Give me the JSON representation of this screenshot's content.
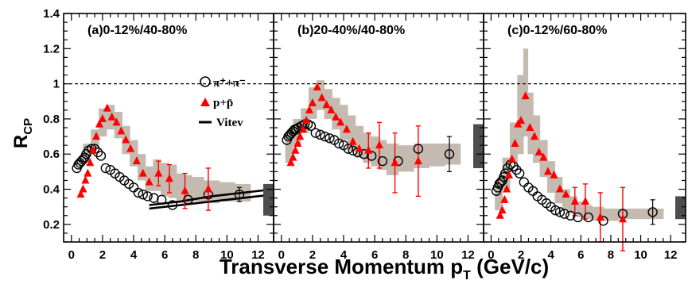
{
  "chart_data": {
    "type": "scatter",
    "ylabel_main": "R",
    "ylabel_sub": "CP",
    "xlabel_main": "Transverse Momentum p",
    "xlabel_sub": "T",
    "xlabel_unit": " (GeV/c)",
    "y_ticks": [
      "0.2",
      "0.4",
      "0.6",
      "0.8",
      "1",
      "1.2",
      "1.4"
    ],
    "x_ticks": [
      "0",
      "2",
      "4",
      "6",
      "8",
      "10",
      "12"
    ],
    "xlim": [
      -0.5,
      13
    ],
    "ylim": [
      0.1,
      1.4
    ],
    "reference_line_y": 1,
    "legend": {
      "pion_label": "π⁺+π⁻",
      "proton_label": "p+p̄",
      "model_label": "Vitev",
      "placement": "top-right of panel (a)"
    },
    "colors": {
      "pion": "#000000",
      "proton": "#ff0000",
      "band": "#c4bab0",
      "norm_box": "#4d4d4d"
    },
    "panels": [
      {
        "id": "a",
        "label": "(a)0-12%/40-80%",
        "norm_box": [
          0.25,
          0.43
        ],
        "pion": [
          [
            0.35,
            0.52
          ],
          [
            0.45,
            0.54
          ],
          [
            0.55,
            0.55
          ],
          [
            0.65,
            0.56
          ],
          [
            0.75,
            0.57
          ],
          [
            0.85,
            0.58
          ],
          [
            0.95,
            0.6
          ],
          [
            1.1,
            0.62
          ],
          [
            1.3,
            0.63
          ],
          [
            1.5,
            0.63
          ],
          [
            1.7,
            0.61
          ],
          [
            1.9,
            0.59
          ],
          [
            2.2,
            0.52
          ],
          [
            2.5,
            0.51
          ],
          [
            2.8,
            0.49
          ],
          [
            3.1,
            0.47
          ],
          [
            3.4,
            0.45
          ],
          [
            3.7,
            0.43
          ],
          [
            4.0,
            0.41
          ],
          [
            4.3,
            0.38
          ],
          [
            4.6,
            0.37
          ],
          [
            4.9,
            0.36
          ],
          [
            5.3,
            0.35
          ],
          [
            5.8,
            0.34
          ],
          [
            6.5,
            0.31
          ],
          [
            7.5,
            0.34
          ],
          [
            8.8,
            0.37
          ],
          [
            10.8,
            0.37
          ]
        ],
        "pion_err": [
          [
            10.8,
            0.04
          ]
        ],
        "proton": [
          [
            0.6,
            0.37
          ],
          [
            0.75,
            0.4
          ],
          [
            0.9,
            0.45
          ],
          [
            1.05,
            0.49
          ],
          [
            1.2,
            0.55
          ],
          [
            1.4,
            0.62
          ],
          [
            1.6,
            0.7
          ],
          [
            1.8,
            0.77
          ],
          [
            2.0,
            0.8
          ],
          [
            2.3,
            0.86
          ],
          [
            2.6,
            0.81
          ],
          [
            2.9,
            0.78
          ],
          [
            3.2,
            0.73
          ],
          [
            3.5,
            0.68
          ],
          [
            3.8,
            0.63
          ],
          [
            4.2,
            0.56
          ],
          [
            4.6,
            0.49
          ],
          [
            5.0,
            0.44
          ],
          [
            5.6,
            0.49
          ],
          [
            6.3,
            0.46
          ],
          [
            7.3,
            0.39
          ],
          [
            8.8,
            0.4
          ]
        ],
        "proton_err": [
          [
            5.6,
            0.07
          ],
          [
            6.3,
            0.08
          ],
          [
            7.3,
            0.1
          ],
          [
            8.8,
            0.12
          ]
        ],
        "band": [
          [
            1.0,
            0.58,
            0.66
          ],
          [
            1.5,
            0.63,
            0.74
          ],
          [
            2.0,
            0.7,
            0.86
          ],
          [
            2.5,
            0.74,
            0.88
          ],
          [
            3.0,
            0.69,
            0.84
          ],
          [
            3.5,
            0.6,
            0.76
          ],
          [
            4.0,
            0.53,
            0.68
          ],
          [
            4.5,
            0.45,
            0.6
          ],
          [
            5.0,
            0.39,
            0.53
          ],
          [
            5.5,
            0.39,
            0.57
          ],
          [
            6.0,
            0.36,
            0.55
          ],
          [
            6.5,
            0.35,
            0.54
          ],
          [
            7.0,
            0.32,
            0.49
          ],
          [
            7.5,
            0.32,
            0.48
          ],
          [
            8.0,
            0.33,
            0.47
          ],
          [
            9.0,
            0.32,
            0.45
          ],
          [
            10.0,
            0.33,
            0.44
          ],
          [
            11.0,
            0.33,
            0.43
          ]
        ],
        "vitev": [
          [
            [
              5.0,
              0.31
            ],
            [
              7.0,
              0.33
            ],
            [
              9.0,
              0.36
            ],
            [
              11.0,
              0.38
            ],
            [
              13.0,
              0.4
            ]
          ],
          [
            [
              5.0,
              0.29
            ],
            [
              7.0,
              0.31
            ],
            [
              9.0,
              0.33
            ],
            [
              11.0,
              0.35
            ],
            [
              13.0,
              0.37
            ]
          ]
        ]
      },
      {
        "id": "b",
        "label": "(b)20-40%/40-80%",
        "norm_box": [
          0.52,
          0.77
        ],
        "pion": [
          [
            0.35,
            0.68
          ],
          [
            0.45,
            0.7
          ],
          [
            0.55,
            0.71
          ],
          [
            0.65,
            0.72
          ],
          [
            0.75,
            0.73
          ],
          [
            0.85,
            0.74
          ],
          [
            0.95,
            0.74
          ],
          [
            1.1,
            0.75
          ],
          [
            1.3,
            0.76
          ],
          [
            1.5,
            0.77
          ],
          [
            1.7,
            0.77
          ],
          [
            1.9,
            0.76
          ],
          [
            2.2,
            0.72
          ],
          [
            2.5,
            0.71
          ],
          [
            2.8,
            0.7
          ],
          [
            3.1,
            0.69
          ],
          [
            3.4,
            0.68
          ],
          [
            3.7,
            0.66
          ],
          [
            4.0,
            0.65
          ],
          [
            4.3,
            0.63
          ],
          [
            4.6,
            0.62
          ],
          [
            4.9,
            0.61
          ],
          [
            5.3,
            0.6
          ],
          [
            5.8,
            0.59
          ],
          [
            6.5,
            0.56
          ],
          [
            7.5,
            0.56
          ],
          [
            8.8,
            0.63
          ],
          [
            10.8,
            0.6
          ]
        ],
        "pion_err": [
          [
            10.8,
            0.1
          ]
        ],
        "proton": [
          [
            0.6,
            0.55
          ],
          [
            0.75,
            0.58
          ],
          [
            0.9,
            0.62
          ],
          [
            1.05,
            0.66
          ],
          [
            1.2,
            0.7
          ],
          [
            1.4,
            0.74
          ],
          [
            1.6,
            0.79
          ],
          [
            1.8,
            0.85
          ],
          [
            2.0,
            0.89
          ],
          [
            2.3,
            0.98
          ],
          [
            2.6,
            0.92
          ],
          [
            2.9,
            0.88
          ],
          [
            3.2,
            0.85
          ],
          [
            3.5,
            0.81
          ],
          [
            3.8,
            0.78
          ],
          [
            4.2,
            0.74
          ],
          [
            4.6,
            0.67
          ],
          [
            5.0,
            0.63
          ],
          [
            5.6,
            0.62
          ],
          [
            6.3,
            0.65
          ],
          [
            7.3,
            0.55
          ],
          [
            8.8,
            0.56
          ]
        ],
        "proton_err": [
          [
            5.6,
            0.1
          ],
          [
            6.3,
            0.13
          ],
          [
            7.3,
            0.17
          ],
          [
            8.8,
            0.2
          ]
        ],
        "band": [
          [
            0.5,
            0.55,
            0.72
          ],
          [
            1.0,
            0.65,
            0.8
          ],
          [
            1.5,
            0.72,
            0.86
          ],
          [
            2.0,
            0.8,
            0.98
          ],
          [
            2.5,
            0.85,
            1.02
          ],
          [
            3.0,
            0.8,
            0.97
          ],
          [
            3.5,
            0.74,
            0.92
          ],
          [
            4.0,
            0.68,
            0.88
          ],
          [
            4.5,
            0.62,
            0.82
          ],
          [
            5.0,
            0.58,
            0.76
          ],
          [
            5.5,
            0.55,
            0.72
          ],
          [
            6.0,
            0.53,
            0.7
          ],
          [
            6.5,
            0.51,
            0.68
          ],
          [
            7.0,
            0.48,
            0.66
          ],
          [
            8.0,
            0.5,
            0.65
          ],
          [
            9.0,
            0.52,
            0.66
          ],
          [
            10.0,
            0.53,
            0.66
          ],
          [
            11.0,
            0.54,
            0.66
          ]
        ]
      },
      {
        "id": "c",
        "label": "(c)0-12%/60-80%",
        "norm_box": [
          0.23,
          0.36
        ],
        "pion": [
          [
            0.35,
            0.39
          ],
          [
            0.45,
            0.41
          ],
          [
            0.55,
            0.43
          ],
          [
            0.65,
            0.44
          ],
          [
            0.75,
            0.45
          ],
          [
            0.85,
            0.47
          ],
          [
            0.95,
            0.49
          ],
          [
            1.1,
            0.52
          ],
          [
            1.3,
            0.54
          ],
          [
            1.5,
            0.53
          ],
          [
            1.7,
            0.51
          ],
          [
            1.9,
            0.49
          ],
          [
            2.2,
            0.44
          ],
          [
            2.5,
            0.41
          ],
          [
            2.8,
            0.39
          ],
          [
            3.1,
            0.36
          ],
          [
            3.4,
            0.34
          ],
          [
            3.7,
            0.32
          ],
          [
            4.0,
            0.3
          ],
          [
            4.3,
            0.28
          ],
          [
            4.6,
            0.27
          ],
          [
            4.9,
            0.26
          ],
          [
            5.3,
            0.25
          ],
          [
            5.8,
            0.24
          ],
          [
            6.5,
            0.24
          ],
          [
            7.5,
            0.22
          ],
          [
            8.8,
            0.26
          ],
          [
            10.8,
            0.27
          ]
        ],
        "pion_err": [
          [
            10.8,
            0.07
          ]
        ],
        "proton": [
          [
            0.6,
            0.25
          ],
          [
            0.75,
            0.28
          ],
          [
            0.9,
            0.34
          ],
          [
            1.05,
            0.4
          ],
          [
            1.2,
            0.48
          ],
          [
            1.4,
            0.57
          ],
          [
            1.6,
            0.66
          ],
          [
            1.8,
            0.77
          ],
          [
            2.0,
            0.79
          ],
          [
            2.3,
            0.93
          ],
          [
            2.6,
            0.75
          ],
          [
            2.9,
            0.7
          ],
          [
            3.2,
            0.61
          ],
          [
            3.5,
            0.58
          ],
          [
            3.8,
            0.5
          ],
          [
            4.2,
            0.48
          ],
          [
            4.6,
            0.4
          ],
          [
            5.0,
            0.37
          ],
          [
            5.6,
            0.33
          ],
          [
            6.3,
            0.33
          ],
          [
            7.3,
            0.24
          ],
          [
            8.8,
            0.23
          ]
        ],
        "proton_err": [
          [
            5.6,
            0.08
          ],
          [
            6.3,
            0.1
          ],
          [
            7.3,
            0.14
          ],
          [
            8.8,
            0.18
          ]
        ],
        "band": [
          [
            0.5,
            0.28,
            0.45
          ],
          [
            1.0,
            0.4,
            0.58
          ],
          [
            1.5,
            0.55,
            0.78
          ],
          [
            2.0,
            0.6,
            1.05
          ],
          [
            2.3,
            0.7,
            1.2
          ],
          [
            2.6,
            0.6,
            0.95
          ],
          [
            3.0,
            0.55,
            0.82
          ],
          [
            3.5,
            0.47,
            0.68
          ],
          [
            4.0,
            0.38,
            0.56
          ],
          [
            4.5,
            0.32,
            0.47
          ],
          [
            5.0,
            0.28,
            0.4
          ],
          [
            5.5,
            0.26,
            0.36
          ],
          [
            6.0,
            0.24,
            0.33
          ],
          [
            6.5,
            0.23,
            0.31
          ],
          [
            7.0,
            0.22,
            0.3
          ],
          [
            8.0,
            0.22,
            0.29
          ],
          [
            9.0,
            0.23,
            0.29
          ],
          [
            10.0,
            0.23,
            0.29
          ],
          [
            11.0,
            0.23,
            0.29
          ]
        ]
      }
    ]
  }
}
